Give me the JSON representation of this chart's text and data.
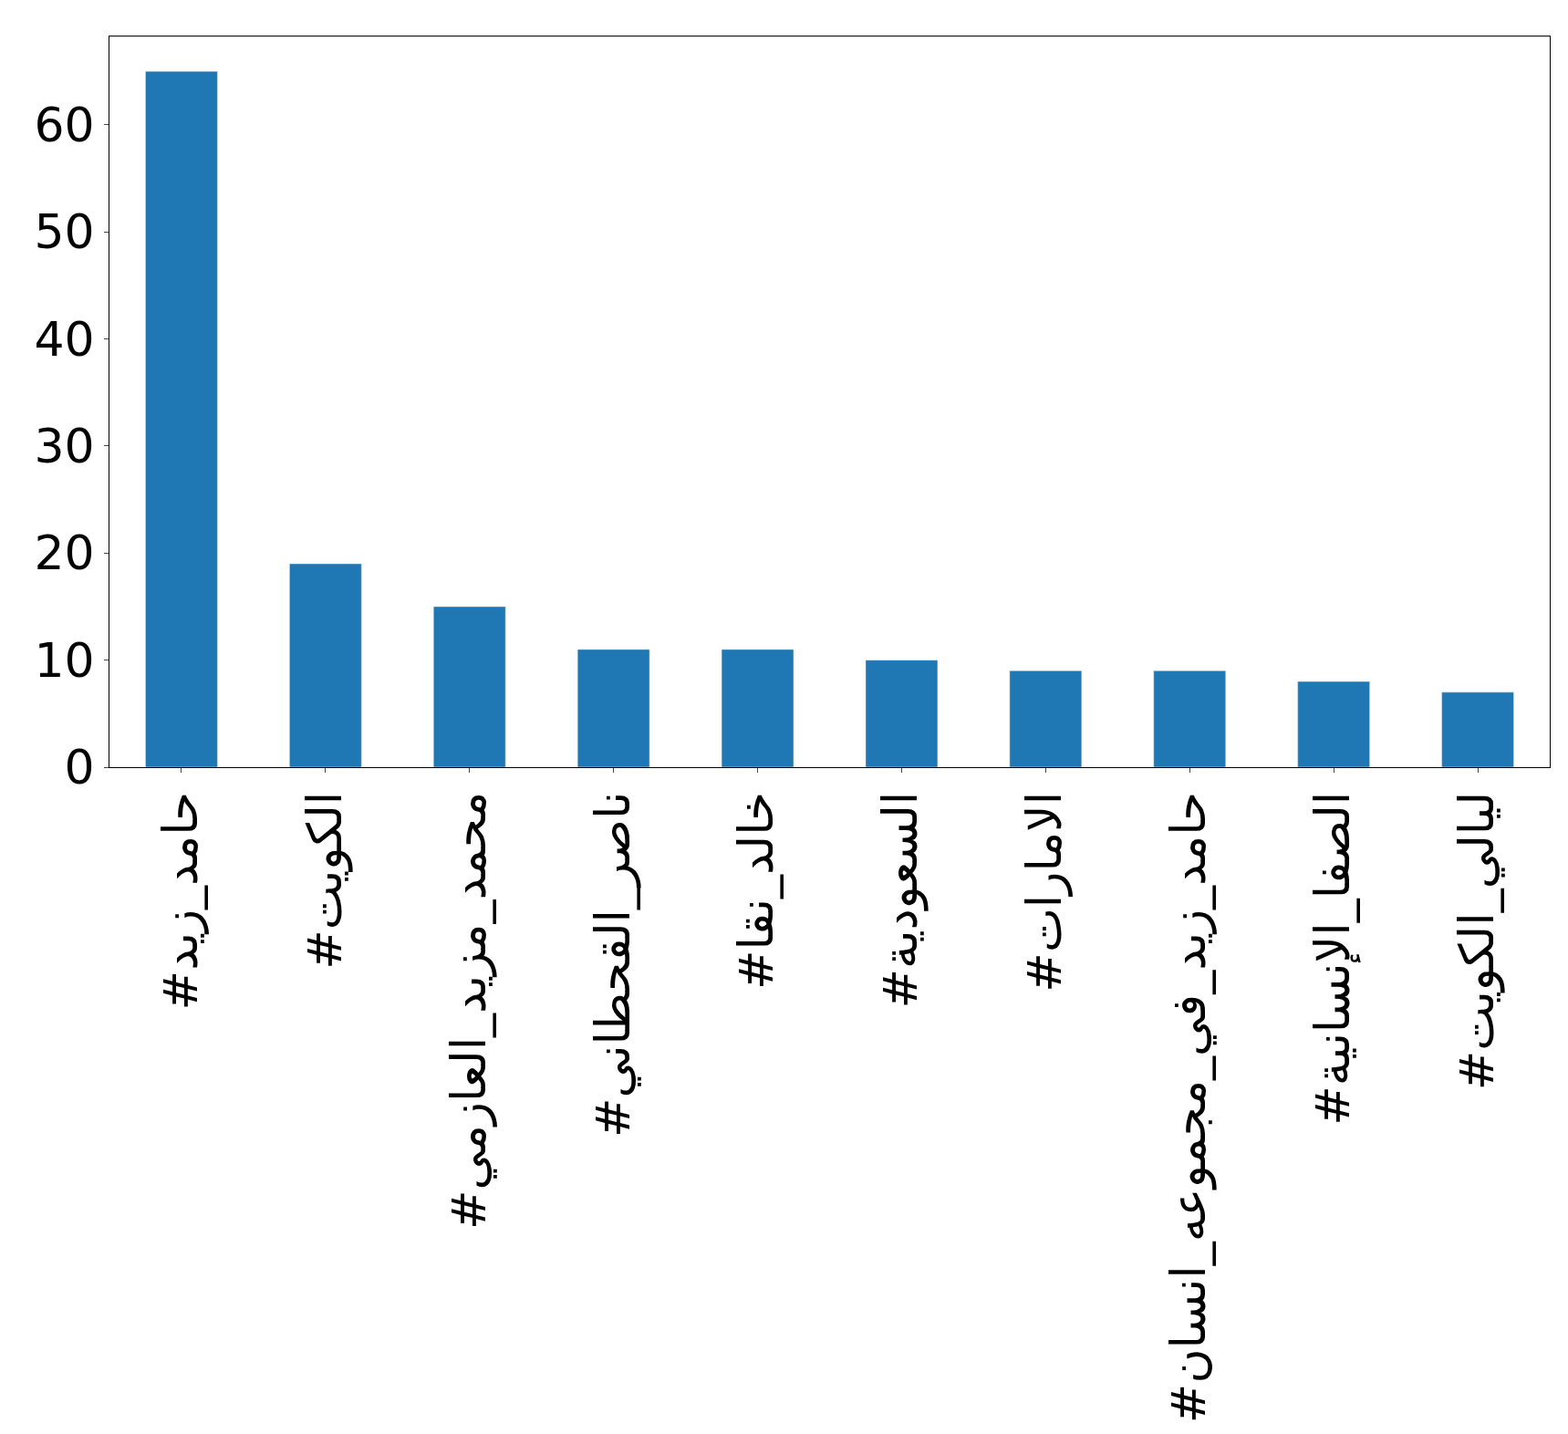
{
  "chart_data": {
    "type": "bar",
    "categories": [
      "#حامد_زيد",
      "#الكويت",
      "#محمد_مزيد_العازمي",
      "#ناصر_القحطاني",
      "#خالد_نقا",
      "#السعودية",
      "#الامارات",
      "#حامد_زيد_في_مجموعه_انسان",
      "#الصفا_الإنسانية",
      "#ليالي_الكويت"
    ],
    "values": [
      65,
      19,
      15,
      11,
      11,
      10,
      9,
      9,
      8,
      7
    ],
    "color": "#1f77b4",
    "ylim": [
      0,
      68.25
    ],
    "yticks": [
      0,
      10,
      20,
      30,
      40,
      50,
      60
    ],
    "legend": false
  }
}
